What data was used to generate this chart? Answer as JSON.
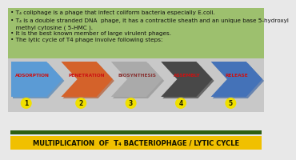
{
  "bg_top": "#9dc06e",
  "bg_mid": "#c8c8c8",
  "bg_bottom": "#e8e8e8",
  "title_bg": "#f0c000",
  "title_text": "MULTIPLICATION  OF  T₄ BACTERIOPHAGE / LYTIC CYCLE",
  "title_color": "#111100",
  "title_bar_color": "#2e5e10",
  "bullets": [
    "• T₄ coliphage is a phage that infect coliform bacteria especially E.coli.",
    "• T₄ is a double stranded DNA  phage, it has a contractile sheath and an unique base 5-hydroxyl",
    "   methyl cytosine ( 5-HMC ).",
    "• It is the best known member of large virulent phages.",
    "• The lytic cycle of T4 phage involve following steps:"
  ],
  "bullet_color": "#111111",
  "bullet_fontsize": 5.2,
  "arrows": [
    {
      "label": "ADSORPTION",
      "number": "1",
      "arrow_color": "#5b9bd5",
      "shadow_color": "#3a78b5",
      "text_color": "#cc1111"
    },
    {
      "label": "PENETRATION",
      "number": "2",
      "arrow_color": "#d4622a",
      "shadow_color": "#b04818",
      "text_color": "#cc1111"
    },
    {
      "label": "BIOSYNTHESIS",
      "number": "3",
      "arrow_color": "#aaaaaa",
      "shadow_color": "#888888",
      "text_color": "#883333"
    },
    {
      "label": "ASSEMBLY",
      "number": "4",
      "arrow_color": "#484848",
      "shadow_color": "#282828",
      "text_color": "#cc1111"
    },
    {
      "label": "RELEASE",
      "number": "5",
      "arrow_color": "#4472b8",
      "shadow_color": "#2858a0",
      "text_color": "#cc1111"
    }
  ],
  "circle_color": "#f0e000",
  "circle_text_color": "#222200",
  "n_arrows": 5
}
